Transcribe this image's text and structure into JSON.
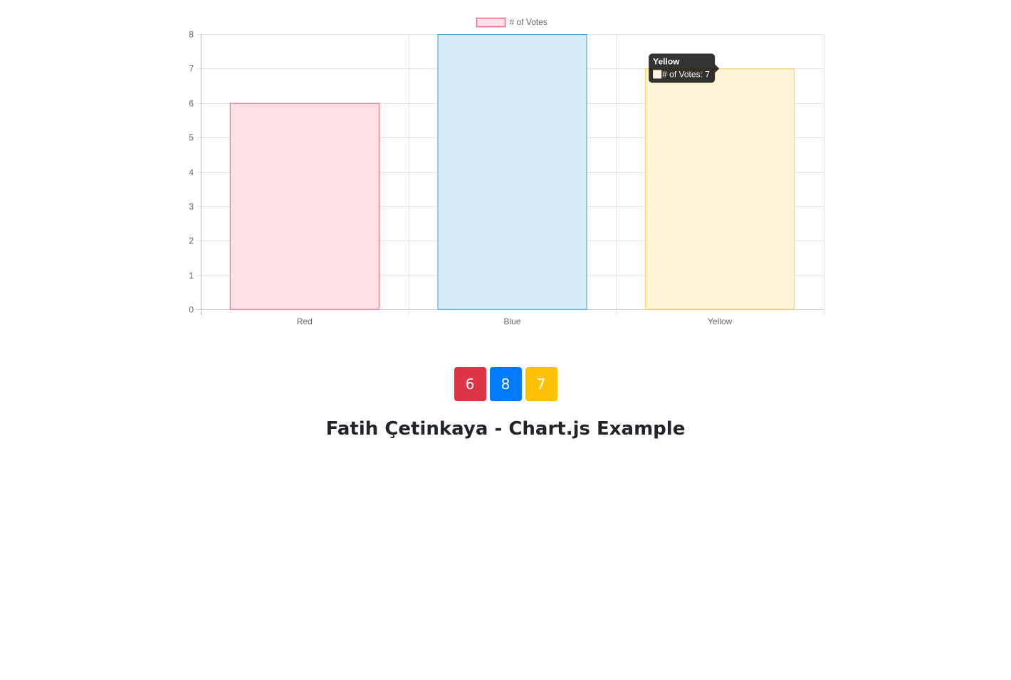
{
  "chart_data": {
    "type": "bar",
    "categories": [
      "Red",
      "Blue",
      "Yellow"
    ],
    "series": [
      {
        "name": "# of Votes",
        "values": [
          6,
          8,
          7
        ],
        "fill_colors": [
          "#ffe0e6",
          "#d7ecf9",
          "#fff4d6"
        ],
        "border_colors": [
          "#ff6384",
          "#36a2eb",
          "#ffce56"
        ]
      }
    ],
    "ylim": [
      0,
      8
    ],
    "yticks": [
      0,
      1,
      2,
      3,
      4,
      5,
      6,
      7,
      8
    ],
    "grid": true,
    "legend": "top-center",
    "tooltip": {
      "title": "Yellow",
      "label": "# of Votes: 7",
      "category_index": 2
    }
  },
  "counters": [
    {
      "value": "6",
      "color": "#dc3545"
    },
    {
      "value": "8",
      "color": "#007bff"
    },
    {
      "value": "7",
      "color": "#ffc107"
    }
  ],
  "title": "Fatih Çetinkaya - Chart.js Example"
}
